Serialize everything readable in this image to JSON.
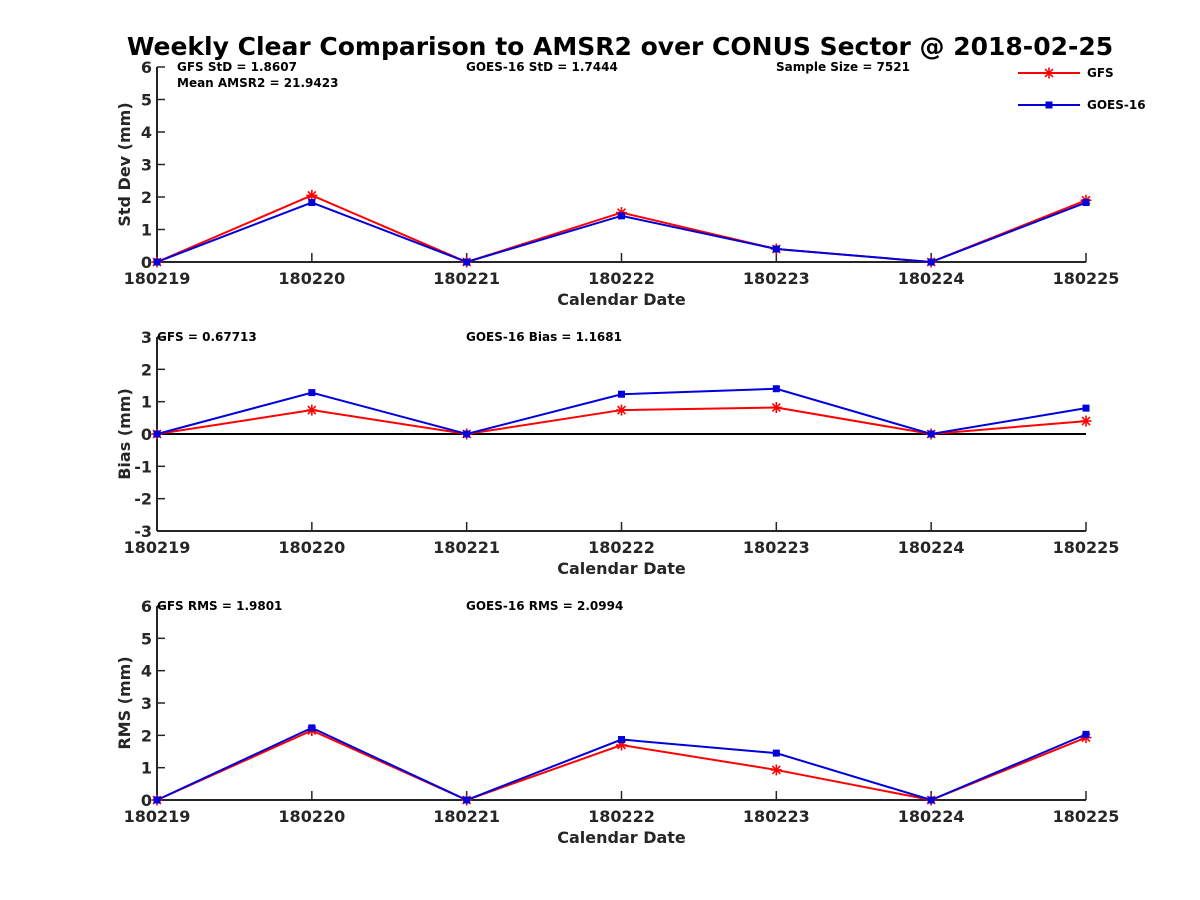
{
  "figure_title": "Weekly Clear Comparison to AMSR2 over CONUS Sector @ 2018-02-25",
  "colors": {
    "GFS": "#ff0000",
    "GOES-16": "#0000dd",
    "axis": "#262626",
    "zero_line": "#000000"
  },
  "legend": {
    "placement": "top-right",
    "entries": [
      {
        "name": "GFS",
        "marker": "asterisk",
        "color": "#ff0000"
      },
      {
        "name": "GOES-16",
        "marker": "square",
        "color": "#0000dd"
      }
    ]
  },
  "chart_data": [
    {
      "type": "line",
      "id": "stddev",
      "categories": [
        "180219",
        "180220",
        "180221",
        "180222",
        "180223",
        "180224",
        "180225"
      ],
      "xlabel": "Calendar Date",
      "ylabel": "Std Dev (mm)",
      "ylim": [
        0,
        6
      ],
      "yticks": [
        "0",
        "1",
        "2",
        "3",
        "4",
        "5",
        "6"
      ],
      "zero_line": false,
      "annotations": [
        "GFS StD = 1.8607",
        "Mean AMSR2 = 21.9423",
        "GOES-16 StD = 1.7444",
        "Sample Size = 7521"
      ],
      "series": [
        {
          "name": "GFS",
          "values": [
            0.0,
            2.05,
            0.0,
            1.52,
            0.4,
            0.0,
            1.9
          ]
        },
        {
          "name": "GOES-16",
          "values": [
            0.0,
            1.83,
            0.0,
            1.42,
            0.4,
            0.0,
            1.83
          ]
        }
      ]
    },
    {
      "type": "line",
      "id": "bias",
      "categories": [
        "180219",
        "180220",
        "180221",
        "180222",
        "180223",
        "180224",
        "180225"
      ],
      "xlabel": "Calendar Date",
      "ylabel": "Bias (mm)",
      "ylim": [
        -3,
        3
      ],
      "yticks": [
        "-3",
        "-2",
        "-1",
        "0",
        "1",
        "2",
        "3"
      ],
      "zero_line": true,
      "annotations": [
        "GFS = 0.67713",
        "GOES-16 Bias  = 1.1681"
      ],
      "series": [
        {
          "name": "GFS",
          "values": [
            0.0,
            0.74,
            0.0,
            0.74,
            0.82,
            0.0,
            0.4
          ]
        },
        {
          "name": "GOES-16",
          "values": [
            0.0,
            1.28,
            0.0,
            1.23,
            1.4,
            0.0,
            0.8
          ]
        }
      ]
    },
    {
      "type": "line",
      "id": "rms",
      "categories": [
        "180219",
        "180220",
        "180221",
        "180222",
        "180223",
        "180224",
        "180225"
      ],
      "xlabel": "Calendar Date",
      "ylabel": "RMS (mm)",
      "ylim": [
        0,
        6
      ],
      "yticks": [
        "0",
        "1",
        "2",
        "3",
        "4",
        "5",
        "6"
      ],
      "zero_line": false,
      "annotations": [
        "GFS RMS = 1.9801",
        "GOES-16 RMS = 2.0994"
      ],
      "series": [
        {
          "name": "GFS",
          "values": [
            0.0,
            2.15,
            0.0,
            1.7,
            0.93,
            0.0,
            1.93
          ]
        },
        {
          "name": "GOES-16",
          "values": [
            0.0,
            2.23,
            0.0,
            1.87,
            1.45,
            0.0,
            2.03
          ]
        }
      ]
    }
  ]
}
